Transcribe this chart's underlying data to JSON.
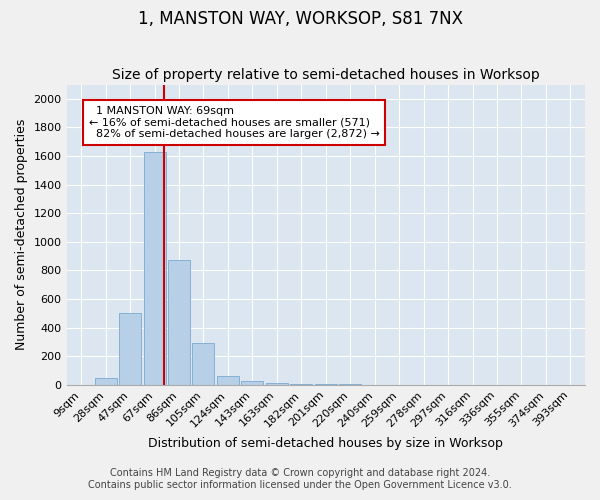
{
  "title": "1, MANSTON WAY, WORKSOP, S81 7NX",
  "subtitle": "Size of property relative to semi-detached houses in Worksop",
  "xlabel": "Distribution of semi-detached houses by size in Worksop",
  "ylabel": "Number of semi-detached properties",
  "footnote1": "Contains HM Land Registry data © Crown copyright and database right 2024.",
  "footnote2": "Contains public sector information licensed under the Open Government Licence v3.0.",
  "bar_labels": [
    "9sqm",
    "28sqm",
    "47sqm",
    "67sqm",
    "86sqm",
    "105sqm",
    "124sqm",
    "143sqm",
    "163sqm",
    "182sqm",
    "201sqm",
    "220sqm",
    "240sqm",
    "259sqm",
    "278sqm",
    "297sqm",
    "316sqm",
    "336sqm",
    "355sqm",
    "374sqm",
    "393sqm"
  ],
  "bar_values": [
    0,
    50,
    500,
    1630,
    870,
    290,
    60,
    30,
    15,
    5,
    5,
    5,
    2,
    1,
    1,
    1,
    1,
    0,
    0,
    0,
    0
  ],
  "bar_color": "#b8cfe8",
  "bar_edge_color": "#7aaad0",
  "property_label": "1 MANSTON WAY: 69sqm",
  "pct_smaller": 16,
  "pct_smaller_count": 571,
  "pct_larger": 82,
  "pct_larger_count": 2872,
  "annotation_line_color": "#cc0000",
  "annotation_box_color": "#cc0000",
  "property_bin_index": 3,
  "ylim": [
    0,
    2100
  ],
  "yticks": [
    0,
    200,
    400,
    600,
    800,
    1000,
    1200,
    1400,
    1600,
    1800,
    2000
  ],
  "bg_color": "#dce6f0",
  "fig_color": "#f0f0f0",
  "grid_color": "#ffffff",
  "title_fontsize": 12,
  "subtitle_fontsize": 10,
  "axis_label_fontsize": 9,
  "tick_fontsize": 8,
  "footnote_fontsize": 7
}
